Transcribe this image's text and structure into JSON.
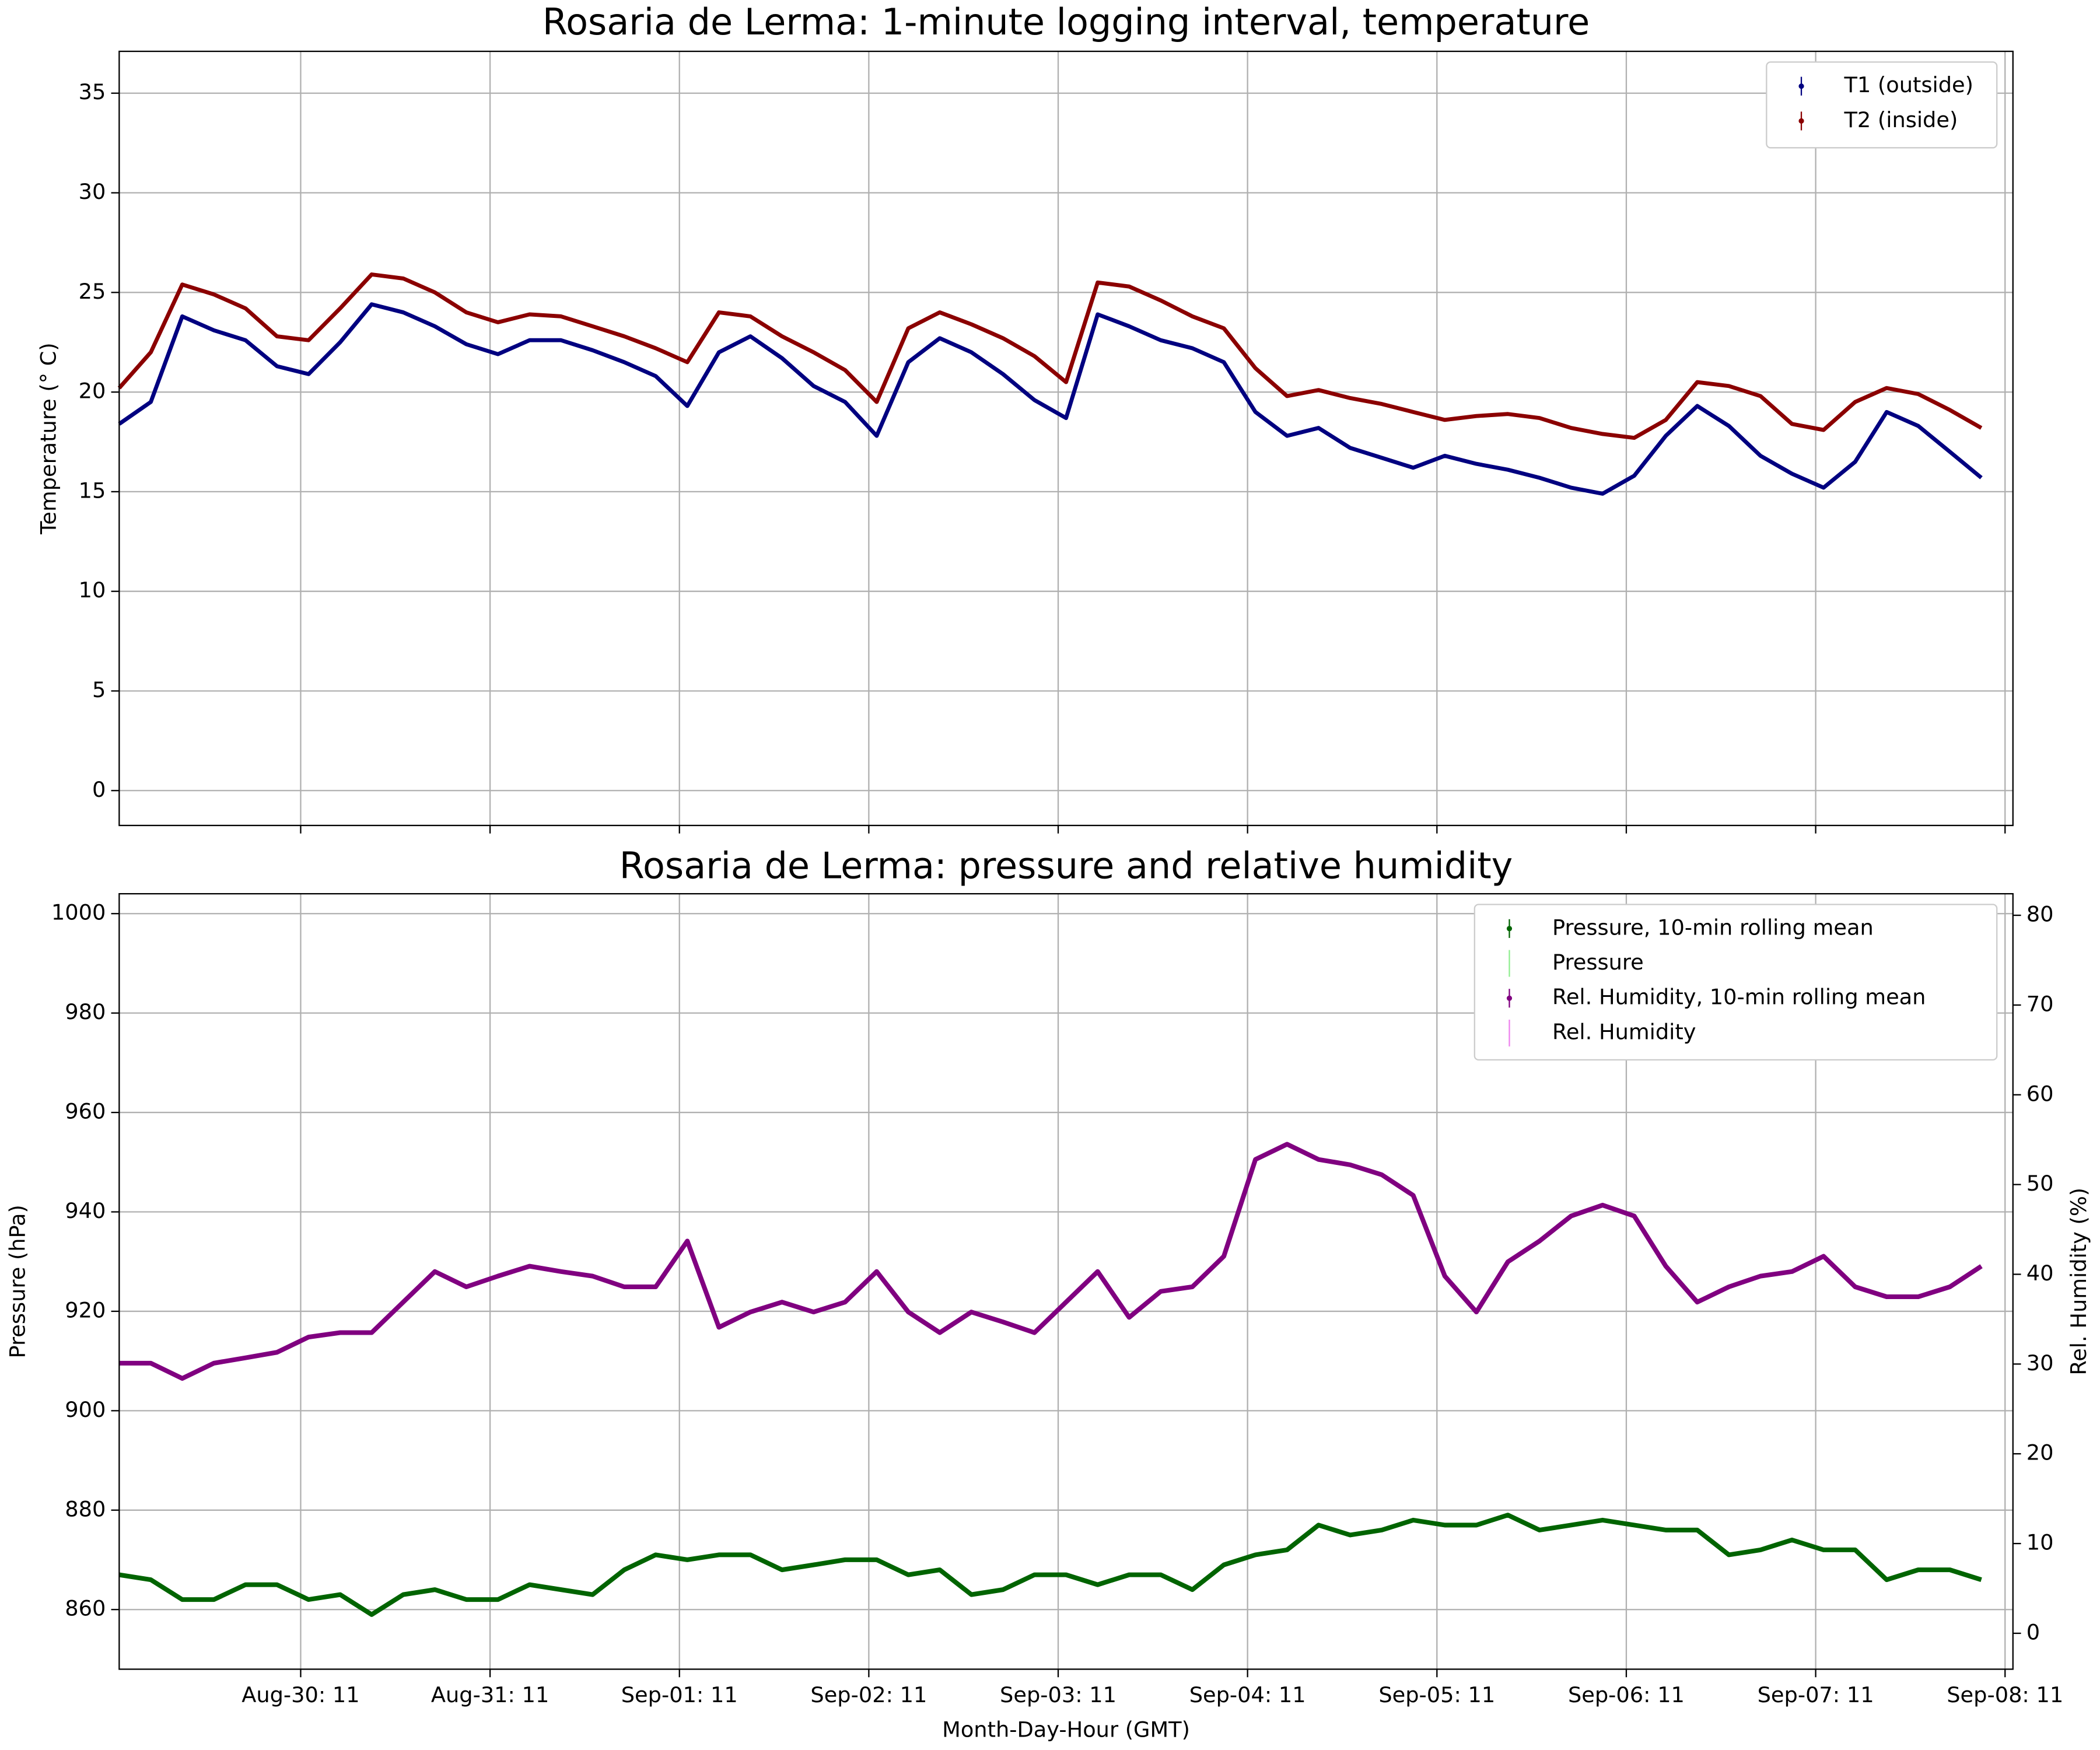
{
  "chart_data": [
    {
      "type": "line",
      "title": "Rosaria de Lerma: 1-minute logging interval, temperature",
      "ylabel": "Temperature ($^\\circ$C)",
      "x": [
        "Aug-29: 12",
        "Aug-29: 16",
        "Aug-29: 20",
        "Aug-30: 00",
        "Aug-30: 04",
        "Aug-30: 08",
        "Aug-30: 12",
        "Aug-30: 16",
        "Aug-30: 20",
        "Aug-31: 00",
        "Aug-31: 04",
        "Aug-31: 08",
        "Aug-31: 12",
        "Aug-31: 16",
        "Aug-31: 20",
        "Sep-01: 00",
        "Sep-01: 04",
        "Sep-01: 08",
        "Sep-01: 12",
        "Sep-01: 16",
        "Sep-01: 20",
        "Sep-02: 00",
        "Sep-02: 04",
        "Sep-02: 08",
        "Sep-02: 12",
        "Sep-02: 16",
        "Sep-02: 20",
        "Sep-03: 00",
        "Sep-03: 04",
        "Sep-03: 08",
        "Sep-03: 12",
        "Sep-03: 16",
        "Sep-03: 20",
        "Sep-04: 00",
        "Sep-04: 04",
        "Sep-04: 08",
        "Sep-04: 12",
        "Sep-04: 16",
        "Sep-04: 20",
        "Sep-05: 00",
        "Sep-05: 04",
        "Sep-05: 08",
        "Sep-05: 12",
        "Sep-05: 16",
        "Sep-05: 20",
        "Sep-06: 00",
        "Sep-06: 04",
        "Sep-06: 08",
        "Sep-06: 12",
        "Sep-06: 16",
        "Sep-06: 20",
        "Sep-07: 00",
        "Sep-07: 04",
        "Sep-07: 08",
        "Sep-07: 12",
        "Sep-07: 16",
        "Sep-07: 20",
        "Sep-08: 00",
        "Sep-08: 04",
        "Sep-08: 08"
      ],
      "xlim": [
        "Aug-29: 12",
        "Sep-08: 12"
      ],
      "ylim": [
        -1.75,
        37.1
      ],
      "yticks": [
        0,
        5,
        10,
        15,
        20,
        25,
        30,
        35
      ],
      "grid": true,
      "legend": "upper right",
      "series": [
        {
          "name": "T1 (outside)",
          "color": "#000080",
          "width": 3,
          "values": [
            18.4,
            19.5,
            23.8,
            23.1,
            22.6,
            21.3,
            20.9,
            22.5,
            24.4,
            24,
            23.3,
            22.4,
            21.9,
            22.6,
            22.6,
            22.1,
            21.5,
            20.8,
            19.3,
            22,
            22.8,
            21.7,
            20.3,
            19.5,
            17.8,
            21.5,
            22.7,
            22,
            20.9,
            19.6,
            18.7,
            23.9,
            23.3,
            22.6,
            22.2,
            21.5,
            19,
            17.8,
            18.2,
            17.2,
            16.7,
            16.2,
            16.8,
            16.4,
            16.1,
            15.7,
            15.2,
            14.9,
            15.8,
            17.8,
            19.3,
            18.3,
            16.8,
            15.9,
            15.2,
            16.5,
            19,
            18.3,
            17,
            15.7
          ]
        },
        {
          "name": "T2 (inside)",
          "color": "#8b0000",
          "width": 3,
          "values": [
            20.2,
            22,
            25.4,
            24.9,
            24.2,
            22.8,
            22.6,
            24.2,
            25.9,
            25.7,
            25,
            24,
            23.5,
            23.9,
            23.8,
            23.3,
            22.8,
            22.2,
            21.5,
            24,
            23.8,
            22.8,
            22,
            21.1,
            19.5,
            23.2,
            24,
            23.4,
            22.7,
            21.8,
            20.5,
            25.5,
            25.3,
            24.6,
            23.8,
            23.2,
            21.2,
            19.8,
            20.1,
            19.7,
            19.4,
            19,
            18.6,
            18.8,
            18.9,
            18.7,
            18.2,
            17.9,
            17.7,
            18.6,
            20.5,
            20.3,
            19.8,
            18.4,
            18.1,
            19.5,
            20.2,
            19.9,
            19.1,
            18.2
          ]
        }
      ]
    },
    {
      "type": "line",
      "title": "Rosaria de Lerma: pressure and relative humidity",
      "xlabel": "Month-Day-Hour (GMT)",
      "ylabel": "Pressure (hPa)",
      "y2label": "Rel. Humidity (%)",
      "x": [
        "Aug-29: 12",
        "Aug-29: 16",
        "Aug-29: 20",
        "Aug-30: 00",
        "Aug-30: 04",
        "Aug-30: 08",
        "Aug-30: 12",
        "Aug-30: 16",
        "Aug-30: 20",
        "Aug-31: 00",
        "Aug-31: 04",
        "Aug-31: 08",
        "Aug-31: 12",
        "Aug-31: 16",
        "Aug-31: 20",
        "Sep-01: 00",
        "Sep-01: 04",
        "Sep-01: 08",
        "Sep-01: 12",
        "Sep-01: 16",
        "Sep-01: 20",
        "Sep-02: 00",
        "Sep-02: 04",
        "Sep-02: 08",
        "Sep-02: 12",
        "Sep-02: 16",
        "Sep-02: 20",
        "Sep-03: 00",
        "Sep-03: 04",
        "Sep-03: 08",
        "Sep-03: 12",
        "Sep-03: 16",
        "Sep-03: 20",
        "Sep-04: 00",
        "Sep-04: 04",
        "Sep-04: 08",
        "Sep-04: 12",
        "Sep-04: 16",
        "Sep-04: 20",
        "Sep-05: 00",
        "Sep-05: 04",
        "Sep-05: 08",
        "Sep-05: 12",
        "Sep-05: 16",
        "Sep-05: 20",
        "Sep-06: 00",
        "Sep-06: 04",
        "Sep-06: 08",
        "Sep-06: 12",
        "Sep-06: 16",
        "Sep-06: 20",
        "Sep-07: 00",
        "Sep-07: 04",
        "Sep-07: 08",
        "Sep-07: 12",
        "Sep-07: 16",
        "Sep-07: 20",
        "Sep-08: 00",
        "Sep-08: 04",
        "Sep-08: 08"
      ],
      "xlim": [
        "Aug-29: 12",
        "Sep-08: 12"
      ],
      "xticks": [
        "Aug-30: 11",
        "Aug-31: 11",
        "Sep-01: 11",
        "Sep-02: 11",
        "Sep-03: 11",
        "Sep-04: 11",
        "Sep-05: 11",
        "Sep-06: 11",
        "Sep-07: 11",
        "Sep-08: 11"
      ],
      "ylim": [
        848,
        1004
      ],
      "yticks": [
        860,
        880,
        900,
        920,
        940,
        960,
        980,
        1000
      ],
      "y2lim": [
        -4,
        82.4
      ],
      "y2ticks": [
        0,
        10,
        20,
        30,
        40,
        50,
        60,
        70,
        80
      ],
      "grid": true,
      "legend": "upper right",
      "series": [
        {
          "name": "Pressure, 10-min rolling mean",
          "color": "#006400",
          "width": 3.5,
          "values": [
            867,
            866,
            862,
            862,
            865,
            865,
            862,
            863,
            859,
            863,
            864,
            862,
            862,
            865,
            864,
            863,
            868,
            871,
            870,
            871,
            871,
            868,
            869,
            870,
            870,
            867,
            868,
            863,
            864,
            867,
            867,
            865,
            867,
            867,
            864,
            869,
            871,
            872,
            877,
            875,
            876,
            878,
            877,
            877,
            879,
            876,
            877,
            878,
            877,
            876,
            876,
            871,
            872,
            874,
            872,
            872,
            866,
            868,
            868,
            866
          ]
        },
        {
          "name": "Pressure",
          "color": "#90ee90",
          "width": 1,
          "values": [
            867,
            866,
            862,
            862,
            865,
            865,
            862,
            863,
            859,
            863,
            864,
            862,
            862,
            865,
            864,
            863,
            868,
            871,
            870,
            871,
            871,
            868,
            869,
            870,
            870,
            867,
            868,
            863,
            864,
            867,
            867,
            865,
            867,
            867,
            864,
            869,
            871,
            872,
            877,
            875,
            876,
            878,
            877,
            877,
            879,
            876,
            877,
            878,
            877,
            876,
            876,
            871,
            872,
            874,
            872,
            872,
            866,
            868,
            868,
            866
          ]
        },
        {
          "name": "Rel. Humidity, 10-min rolling mean",
          "color": "#800080",
          "width": 3.5,
          "axis": "y2",
          "values": [
            30.1,
            30.1,
            28.4,
            30.1,
            30.7,
            31.3,
            33,
            33.5,
            33.5,
            36.9,
            40.3,
            38.6,
            39.8,
            40.9,
            40.3,
            39.8,
            38.6,
            38.6,
            43.7,
            34.1,
            35.8,
            36.9,
            35.8,
            36.9,
            40.3,
            35.8,
            33.5,
            35.8,
            34.7,
            33.5,
            36.9,
            40.3,
            35.2,
            38.1,
            38.6,
            42,
            52.8,
            54.5,
            52.8,
            52.2,
            51.1,
            48.8,
            39.8,
            35.8,
            41.4,
            43.7,
            46.5,
            47.7,
            46.5,
            40.9,
            36.9,
            38.6,
            39.8,
            40.3,
            42,
            38.6,
            37.5,
            37.5,
            38.6,
            40.9
          ]
        },
        {
          "name": "Rel. Humidity",
          "color": "#ee82ee",
          "width": 1,
          "axis": "y2",
          "values": [
            30.1,
            30.1,
            28.4,
            30.1,
            30.7,
            31.3,
            33,
            33.5,
            33.5,
            36.9,
            40.3,
            38.6,
            39.8,
            40.9,
            40.3,
            39.8,
            38.6,
            38.6,
            43.7,
            34.1,
            35.8,
            36.9,
            35.8,
            36.9,
            40.3,
            35.8,
            33.5,
            35.8,
            34.7,
            33.5,
            36.9,
            40.3,
            35.2,
            38.1,
            38.6,
            42,
            52.8,
            54.5,
            52.8,
            52.2,
            51.1,
            48.8,
            39.8,
            35.8,
            41.4,
            43.7,
            46.5,
            47.7,
            46.5,
            40.9,
            36.9,
            38.6,
            39.8,
            40.3,
            42,
            38.6,
            37.5,
            37.5,
            38.6,
            40.9
          ]
        }
      ]
    }
  ]
}
